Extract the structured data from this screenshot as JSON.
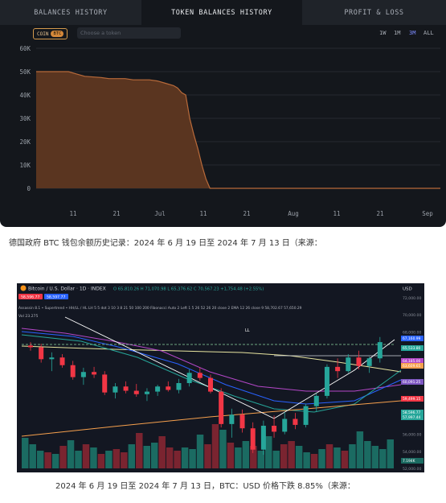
{
  "tabs": {
    "balances": "BALANCES HISTORY",
    "tokens": "TOKEN BALANCES HISTORY",
    "pnl": "PROFIT & LOSS"
  },
  "filter": {
    "coin_label": "COIN",
    "coin_value": "BTC",
    "placeholder": "Choose a token"
  },
  "ranges": [
    "1W",
    "1M",
    "3M",
    "ALL"
  ],
  "selected_range": "3M",
  "colors": {
    "area_fill": "#5a3520",
    "area_line": "#b86a3a",
    "accent": "#7d8cff"
  },
  "chart_data": {
    "type": "area",
    "title": "",
    "x_ticks": [
      "11",
      "21",
      "Jul",
      "11",
      "21",
      "Aug",
      "11",
      "21",
      "Sep"
    ],
    "y_ticks": [
      "0",
      "10K",
      "20K",
      "30K",
      "40K",
      "50K",
      "60K"
    ],
    "ylim": [
      0,
      60000
    ],
    "series": [
      {
        "points": [
          [
            0,
            50000
          ],
          [
            8,
            50000
          ],
          [
            10,
            49000
          ],
          [
            12,
            48000
          ],
          [
            16,
            47500
          ],
          [
            18,
            47000
          ],
          [
            22,
            47000
          ],
          [
            24,
            46500
          ],
          [
            28,
            46500
          ],
          [
            30,
            46000
          ],
          [
            32,
            45000
          ],
          [
            34,
            44000
          ],
          [
            35,
            43000
          ],
          [
            36,
            41000
          ],
          [
            37,
            40000
          ],
          [
            38,
            30000
          ],
          [
            39,
            23000
          ],
          [
            40,
            17000
          ],
          [
            41,
            10000
          ],
          [
            42,
            4000
          ],
          [
            43,
            0
          ],
          [
            100,
            0
          ]
        ]
      }
    ]
  },
  "caption1": "德国政府 BTC 钱包余额历史记录：2024 年 6 月 19 日至 2024 年 7 月 13 日（来源：",
  "tv": {
    "title": "Bitcoin / U.S. Dollar · 1D · INDEX",
    "ohlc": "O 65,810.26 H 71,070.98 L 65,376.62 C 70,567.23 +1,754.48 (+2.55%)",
    "price_tag_sell": "58,596.77",
    "price_tag_buy": "58,597.77",
    "indicator_row": "Assassin 8.1 • Supertrend • HH/LL / HL LH 5 5 dot 3 10 3 8 21 50 100 200 Fibonacci Auto 2 Left 1 5 26 52 26 20 close 2 EMA 12 26 close 9 58,702.67 57,650.29",
    "vol_label": "Vol 23.275",
    "ll_label": "LL",
    "currency": "USD",
    "y_ticks": [
      "72,000.00",
      "70,000.00",
      "68,000.00",
      "66,000.00",
      "64,000.00",
      "62,000.00",
      "60,000.00",
      "58,000.00",
      "56,000.00",
      "54,000.00",
      "52,000.00"
    ],
    "right_labels": [
      "67,160.99",
      "65,533.80",
      "64,185.00",
      "63,609.65",
      "60,091.25",
      "59,499.15",
      "58,596.77",
      "57,997.44",
      "7.194K"
    ]
  },
  "caption2": "2024 年 6 月 19 日至 2024 年 7 月 13 日，BTC：USD 价格下跌 8.85%（来源："
}
